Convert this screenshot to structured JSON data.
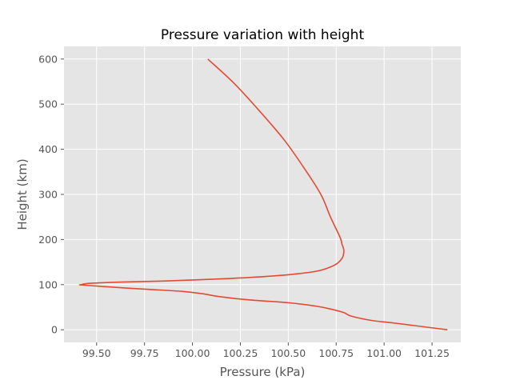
{
  "chart_data": {
    "type": "line",
    "title": "Pressure variation with height",
    "xlabel": "Pressure (kPa)",
    "ylabel": "Height (km)",
    "xlim": [
      99.33,
      101.4
    ],
    "ylim": [
      -28,
      628
    ],
    "xticks": [
      "99.50",
      "99.75",
      "100.00",
      "100.25",
      "100.50",
      "100.75",
      "101.00",
      "101.25"
    ],
    "yticks": [
      "0",
      "100",
      "200",
      "300",
      "400",
      "500",
      "600"
    ],
    "grid": true,
    "background": "#e5e5e5",
    "series": [
      {
        "color": "#e24a33",
        "points": [
          [
            101.33,
            0
          ],
          [
            101.2,
            7
          ],
          [
            101.05,
            15
          ],
          [
            100.93,
            21
          ],
          [
            100.83,
            30
          ],
          [
            100.79,
            38
          ],
          [
            100.73,
            45
          ],
          [
            100.65,
            52
          ],
          [
            100.5,
            60
          ],
          [
            100.3,
            66
          ],
          [
            100.15,
            73
          ],
          [
            100.05,
            80
          ],
          [
            99.95,
            85
          ],
          [
            99.75,
            90
          ],
          [
            99.6,
            94
          ],
          [
            99.43,
            99
          ],
          [
            99.42,
            100
          ],
          [
            99.47,
            103
          ],
          [
            99.65,
            106
          ],
          [
            99.85,
            108
          ],
          [
            100.1,
            112
          ],
          [
            100.3,
            116
          ],
          [
            100.5,
            122
          ],
          [
            100.65,
            130
          ],
          [
            100.74,
            143
          ],
          [
            100.78,
            158
          ],
          [
            100.79,
            175
          ],
          [
            100.78,
            190
          ],
          [
            100.77,
            205
          ],
          [
            100.72,
            250
          ],
          [
            100.67,
            300
          ],
          [
            100.58,
            360
          ],
          [
            100.48,
            420
          ],
          [
            100.36,
            480
          ],
          [
            100.22,
            545
          ],
          [
            100.08,
            600
          ]
        ]
      }
    ]
  }
}
